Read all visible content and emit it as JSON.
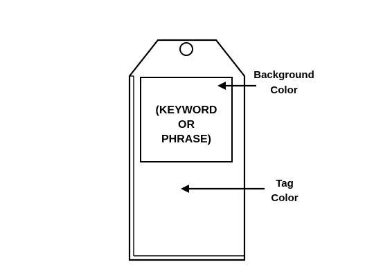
{
  "diagram": {
    "center_text": [
      "(KEYWORD",
      "OR",
      "PHRASE)"
    ],
    "callouts": {
      "background": [
        "Background",
        "Color"
      ],
      "tag": [
        "Tag",
        "Color"
      ]
    }
  },
  "colors": {
    "stroke": "#000000",
    "fill": "#ffffff",
    "text": "#000000"
  }
}
